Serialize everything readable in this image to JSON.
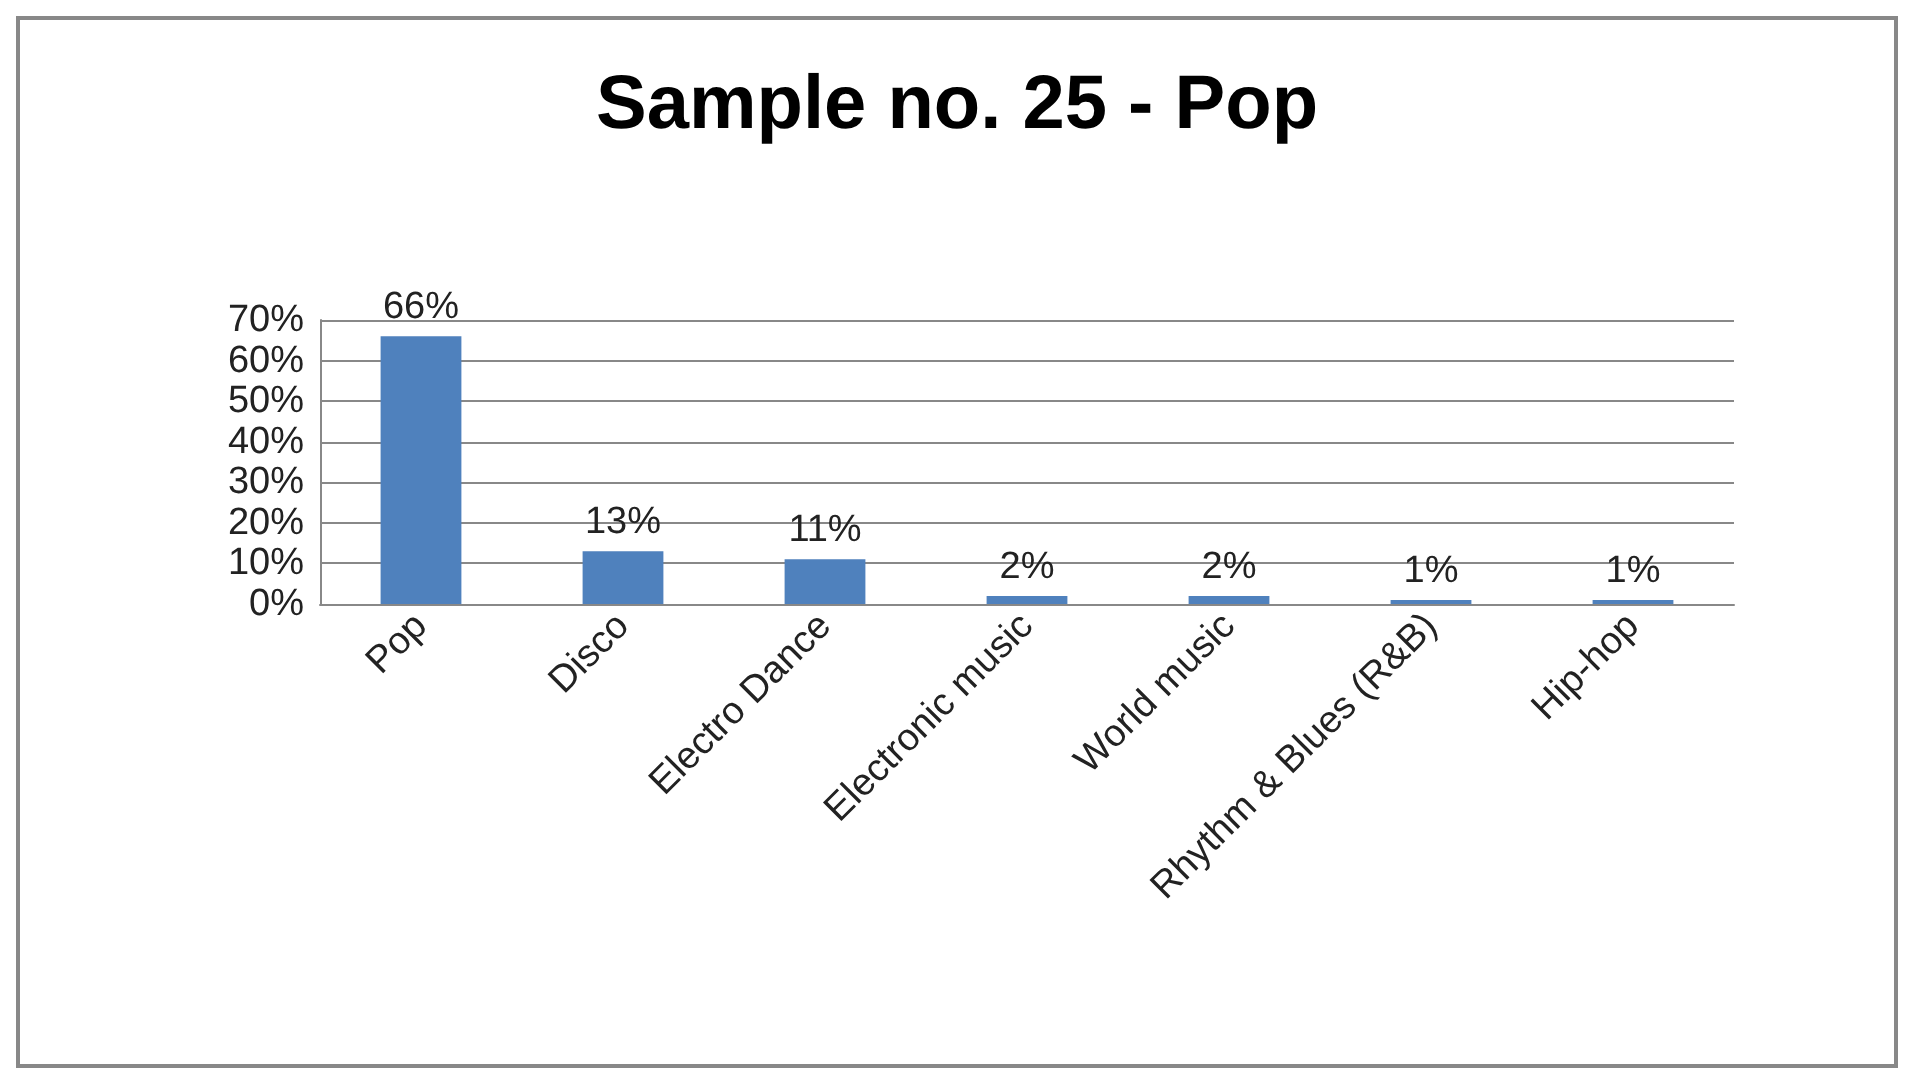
{
  "chart_data": {
    "type": "bar",
    "title": "Sample no. 25 - Pop",
    "categories": [
      "Pop",
      "Disco",
      "Electro Dance",
      "Electronic music",
      "World music",
      "Rhythm & Blues (R&B)",
      "Hip-hop"
    ],
    "values": [
      66,
      13,
      11,
      2,
      2,
      1,
      1
    ],
    "value_labels": [
      "66%",
      "13%",
      "11%",
      "2%",
      "2%",
      "1%",
      "1%"
    ],
    "color": "#4f81bd",
    "ylim": [
      0,
      70
    ],
    "yticks": [
      {
        "value": 0,
        "label": "0%"
      },
      {
        "value": 10,
        "label": "10%"
      },
      {
        "value": 20,
        "label": "20%"
      },
      {
        "value": 30,
        "label": "30%"
      },
      {
        "value": 40,
        "label": "40%"
      },
      {
        "value": 50,
        "label": "50%"
      },
      {
        "value": 60,
        "label": "60%"
      },
      {
        "value": 70,
        "label": "70%"
      }
    ],
    "grid": true
  }
}
